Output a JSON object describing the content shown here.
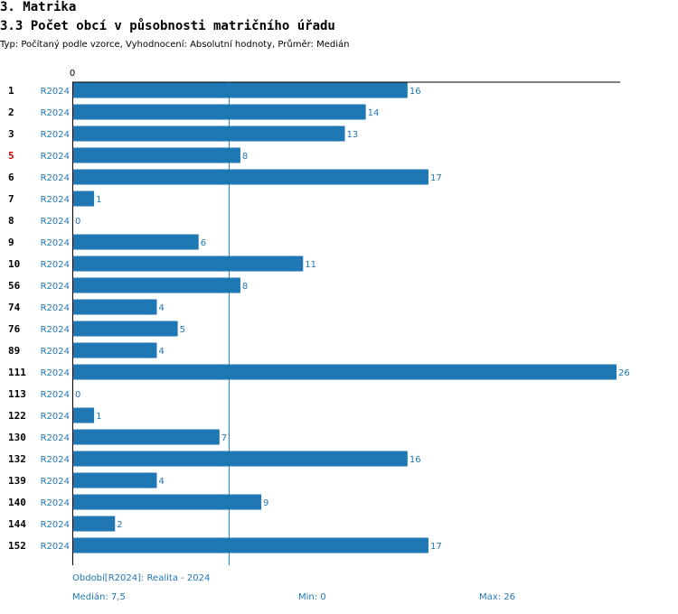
{
  "header": {
    "section": "3. Matrika",
    "title": "3.3 Počet obcí v působnosti matričního úřadu",
    "subtitle": "Typ: Počítaný podle vzorce, Vyhodnocení: Absolutní hodnoty, Průměr: Medián"
  },
  "colors": {
    "bar": "#1f77b4",
    "label": "#1f77b4",
    "highlight": "#cc0000",
    "axis": "#000000"
  },
  "chart_data": {
    "type": "bar",
    "orientation": "horizontal",
    "axis_zero_label": "0",
    "xlim": [
      0,
      26
    ],
    "median": 7.5,
    "series_label": "R2024",
    "highlight_category": "5",
    "categories": [
      "1",
      "2",
      "3",
      "5",
      "6",
      "7",
      "8",
      "9",
      "10",
      "56",
      "74",
      "76",
      "89",
      "111",
      "113",
      "122",
      "130",
      "132",
      "139",
      "140",
      "144",
      "152"
    ],
    "values": [
      16,
      14,
      13,
      8,
      17,
      1,
      0,
      6,
      11,
      8,
      4,
      5,
      4,
      26,
      0,
      1,
      7,
      16,
      4,
      9,
      2,
      17
    ]
  },
  "footer": {
    "period": "Období[R2024]: Realita - 2024",
    "median": "Medián: 7,5",
    "min": "Min: 0",
    "max": "Max: 26"
  }
}
